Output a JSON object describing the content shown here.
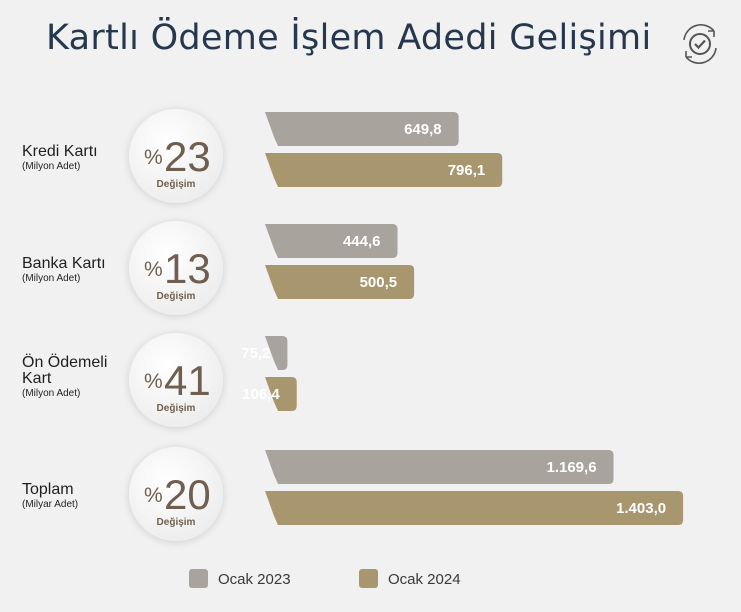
{
  "title": "Kartlı Ödeme İşlem Adedi Gelişimi",
  "colors": {
    "y2023": "#a8a49d",
    "y2024": "#a8976e",
    "accent": "#6f5f51"
  },
  "icons": {
    "badge": "check-circle-refresh-icon"
  },
  "chart_data": {
    "type": "bar",
    "orientation": "horizontal",
    "title": "Kartlı Ödeme İşlem Adedi Gelişimi",
    "legend_placement": "bottom",
    "grid": false,
    "series_names": [
      "Ocak 2023",
      "Ocak 2024"
    ],
    "categories": [
      {
        "label_lines": [
          "Kredi Kartı"
        ],
        "unit": "(Milyon Adet)",
        "change_prefix": "%",
        "change": "23",
        "change_label": "Değişim",
        "values": [
          649.8,
          796.1
        ],
        "value_labels": [
          "649,8",
          "796,1"
        ]
      },
      {
        "label_lines": [
          "Banka Kartı"
        ],
        "unit": "(Milyon Adet)",
        "change_prefix": "%",
        "change": "13",
        "change_label": "Değişim",
        "values": [
          444.6,
          500.5
        ],
        "value_labels": [
          "444,6",
          "500,5"
        ]
      },
      {
        "label_lines": [
          "Ön Ödemeli",
          "Kart"
        ],
        "unit": "(Milyon Adet)",
        "change_prefix": "%",
        "change": "41",
        "change_label": "Değişim",
        "values": [
          75.2,
          106.4
        ],
        "value_labels": [
          "75,2",
          "106,4"
        ]
      },
      {
        "label_lines": [
          "Toplam"
        ],
        "unit": "(Milyar Adet)",
        "change_prefix": "%",
        "change": "20",
        "change_label": "Değişim",
        "values": [
          1169.6,
          1403.0
        ],
        "value_labels": [
          "1.169,6",
          "1.403,0"
        ]
      }
    ]
  }
}
